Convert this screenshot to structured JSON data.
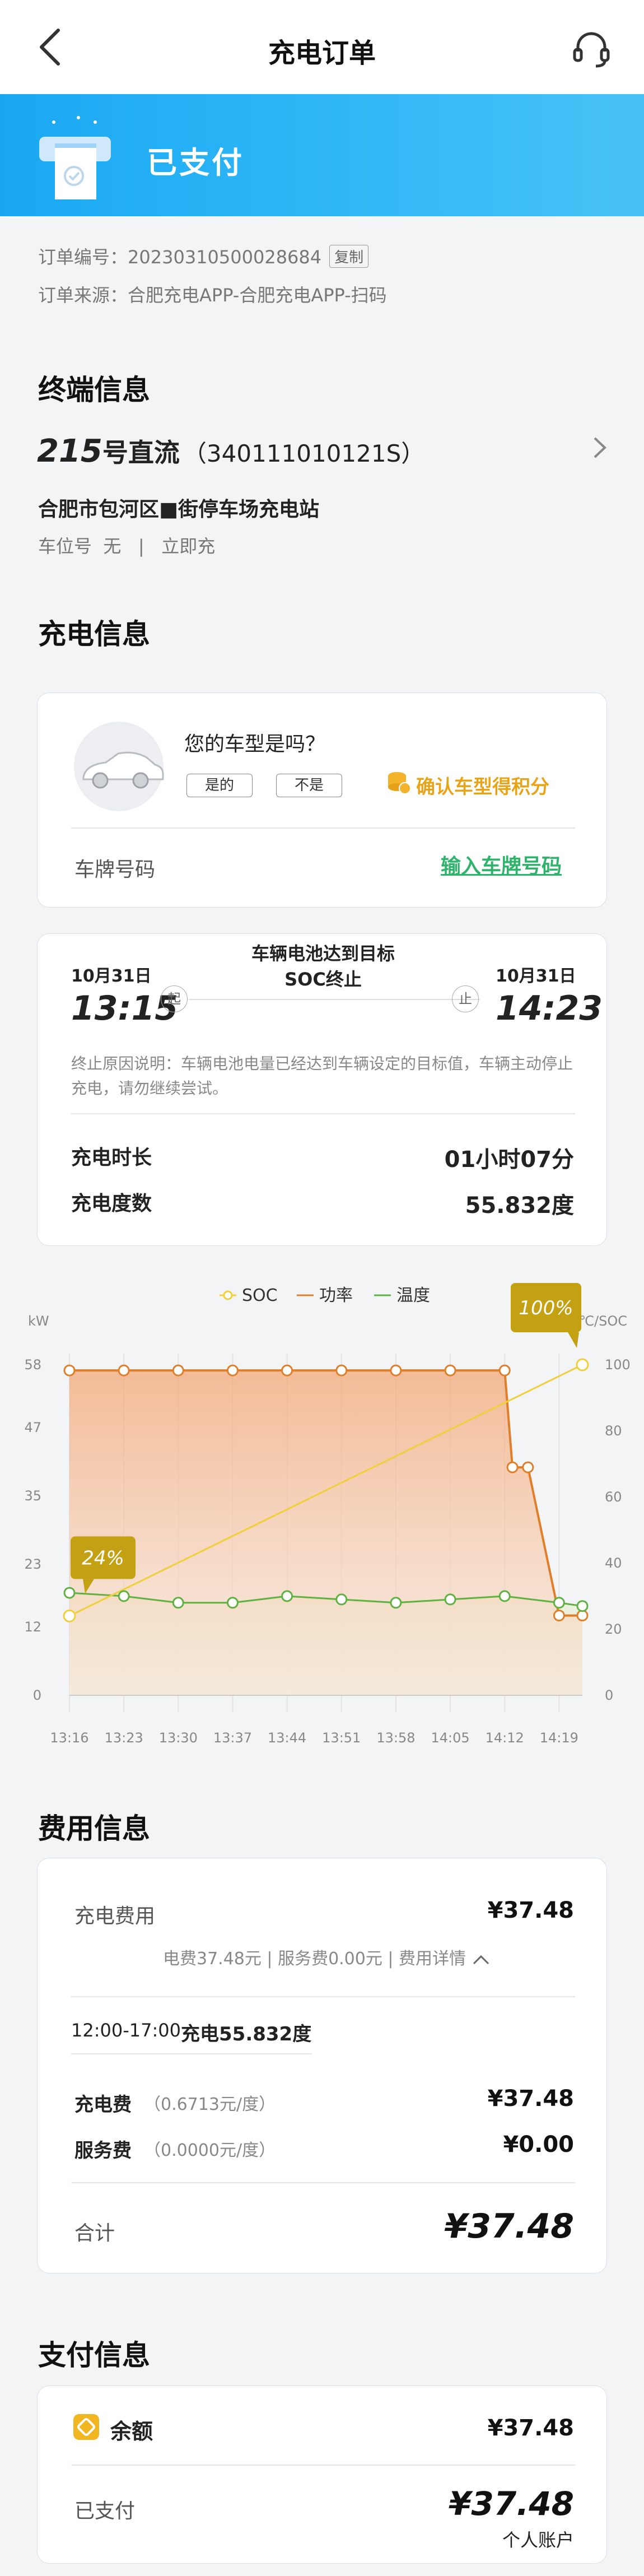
{
  "nav": {
    "title": "充电订单"
  },
  "status": {
    "text": "已支付"
  },
  "order": {
    "number_label": "订单编号：",
    "number": "20230310500028684",
    "copy_label": "复制",
    "source_label": "订单来源：",
    "source": "合肥充电APP-合肥充电APP-扫码"
  },
  "terminal": {
    "section_title": "终端信息",
    "pile_no": "215",
    "pile_suffix": "号直流",
    "pile_code": "（340111010121S）",
    "station": "合肥市包河区■街停车场充电站",
    "spot_label": "车位号",
    "spot_value": "无",
    "separator": "|",
    "charge_mode": "立即充"
  },
  "charge": {
    "section_title": "充电信息",
    "car_question": "您的车型是吗？",
    "yes_label": "是的",
    "no_label": "不是",
    "points_label": "确认车型得积分",
    "plate_label": "车牌号码",
    "plate_action": "输入车牌号码",
    "start_date": "10月31日",
    "start_time": "13:15",
    "start_tag": "起",
    "end_date": "10月31日",
    "end_time": "14:23",
    "end_tag": "止",
    "stop_title_1": "车辆电池达到目标",
    "stop_title_2": "SOC终止",
    "stop_reason": "终止原因说明：车辆电池电量已经达到车辆设定的目标值，车辆主动停止充电，请勿继续尝试。",
    "duration_label": "充电时长",
    "duration_value": "01小时07分",
    "kwh_label": "充电度数",
    "kwh_value": "55.832度"
  },
  "chart_data": {
    "type": "line",
    "legend": [
      "SOC",
      "功率",
      "温度"
    ],
    "legend_position": "top-center",
    "colors": {
      "SOC": "#f0cf3a",
      "功率": "#e07f2a",
      "温度": "#5fb142"
    },
    "y_left_label": "kW",
    "y_right_label": "℃/SOC",
    "y_left_ticks": [
      0,
      12,
      23,
      35,
      47,
      58
    ],
    "y_right_ticks": [
      0,
      20,
      40,
      60,
      80,
      100
    ],
    "x": [
      "13:16",
      "13:23",
      "13:30",
      "13:37",
      "13:44",
      "13:51",
      "13:58",
      "14:05",
      "14:12",
      "14:19"
    ],
    "series": [
      {
        "name": "SOC",
        "axis": "right",
        "x": [
          "13:16",
          "14:22"
        ],
        "values": [
          24,
          100
        ],
        "start_badge": "24%",
        "end_badge": "100%"
      },
      {
        "name": "功率",
        "axis": "left",
        "x": [
          "13:16",
          "13:23",
          "13:30",
          "13:37",
          "13:44",
          "13:51",
          "13:58",
          "14:05",
          "14:12",
          "14:13",
          "14:15",
          "14:19",
          "14:22"
        ],
        "values": [
          57,
          57,
          57,
          57,
          57,
          57,
          57,
          57,
          57,
          40,
          40,
          14,
          14
        ]
      },
      {
        "name": "温度",
        "axis": "right",
        "x": [
          "13:16",
          "13:23",
          "13:30",
          "13:37",
          "13:44",
          "13:51",
          "13:58",
          "14:05",
          "14:12",
          "14:19",
          "14:22"
        ],
        "values": [
          31,
          30,
          28,
          28,
          30,
          29,
          28,
          29,
          30,
          28,
          27
        ]
      }
    ],
    "grid": "vertical"
  },
  "fee": {
    "section_title": "费用信息",
    "charge_fee_label": "充电费用",
    "charge_fee_value": "¥37.48",
    "breakdown": "电费37.48元 | 服务费0.00元 | 费用详情",
    "period": "12:00-17:00",
    "period_kwh": "充电55.832度",
    "elec_label": "充电费",
    "elec_rate": "（0.6713元/度）",
    "elec_value": "¥37.48",
    "service_label": "服务费",
    "service_rate": "（0.0000元/度）",
    "service_value": "¥0.00",
    "total_label": "合计",
    "total_value": "¥37.48"
  },
  "pay": {
    "section_title": "支付信息",
    "method_label": "余额",
    "method_value": "¥37.48",
    "paid_label": "已支付",
    "paid_value": "¥37.48",
    "account": "个人账户"
  }
}
